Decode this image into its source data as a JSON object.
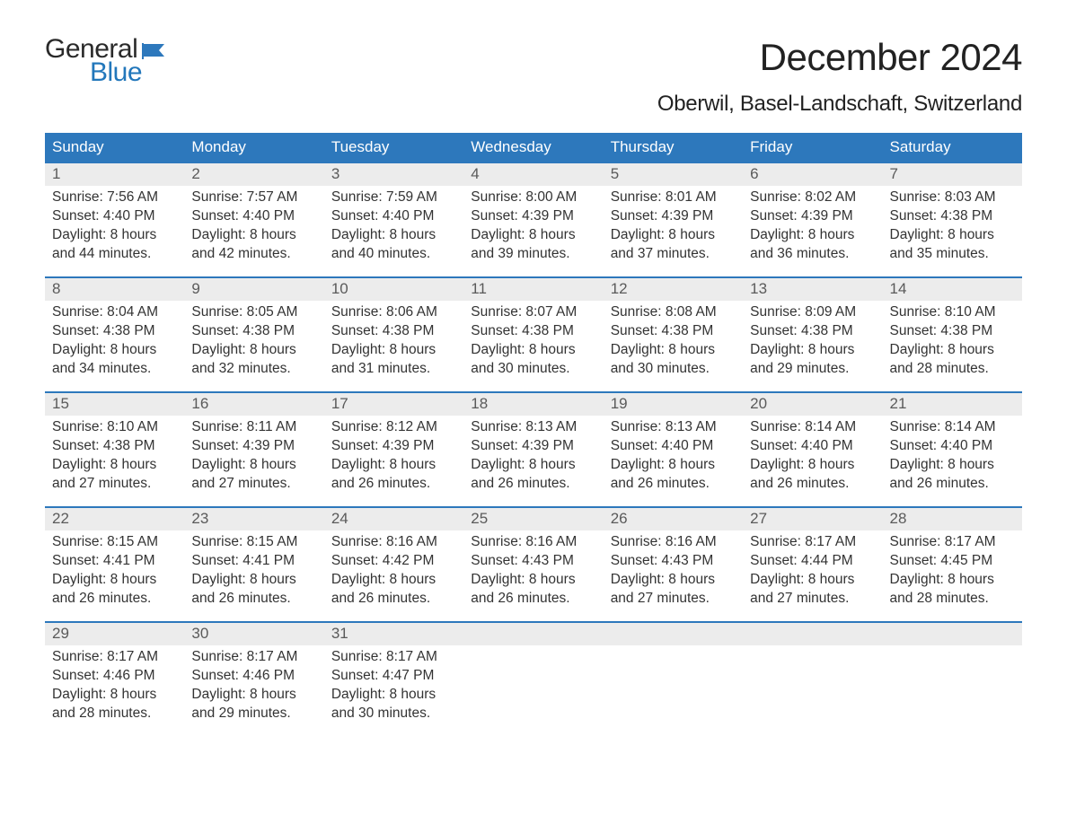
{
  "logo": {
    "text1": "General",
    "text2": "Blue",
    "color_general": "#2a2a2a",
    "color_blue": "#2277bb",
    "flag_color": "#2d78bc"
  },
  "title": "December 2024",
  "location": "Oberwil, Basel-Landschaft, Switzerland",
  "colors": {
    "header_bg": "#2d78bc",
    "header_text": "#ffffff",
    "daynum_bg": "#ececec",
    "daynum_text": "#5a5a5a",
    "body_text": "#333333",
    "week_border": "#2d78bc",
    "page_bg": "#ffffff"
  },
  "fonts": {
    "title_size_pt": 32,
    "location_size_pt": 18,
    "header_size_pt": 13,
    "daynum_size_pt": 13,
    "body_size_pt": 12
  },
  "day_headers": [
    "Sunday",
    "Monday",
    "Tuesday",
    "Wednesday",
    "Thursday",
    "Friday",
    "Saturday"
  ],
  "weeks": [
    [
      {
        "num": "1",
        "sunrise": "Sunrise: 7:56 AM",
        "sunset": "Sunset: 4:40 PM",
        "daylight": "Daylight: 8 hours and 44 minutes."
      },
      {
        "num": "2",
        "sunrise": "Sunrise: 7:57 AM",
        "sunset": "Sunset: 4:40 PM",
        "daylight": "Daylight: 8 hours and 42 minutes."
      },
      {
        "num": "3",
        "sunrise": "Sunrise: 7:59 AM",
        "sunset": "Sunset: 4:40 PM",
        "daylight": "Daylight: 8 hours and 40 minutes."
      },
      {
        "num": "4",
        "sunrise": "Sunrise: 8:00 AM",
        "sunset": "Sunset: 4:39 PM",
        "daylight": "Daylight: 8 hours and 39 minutes."
      },
      {
        "num": "5",
        "sunrise": "Sunrise: 8:01 AM",
        "sunset": "Sunset: 4:39 PM",
        "daylight": "Daylight: 8 hours and 37 minutes."
      },
      {
        "num": "6",
        "sunrise": "Sunrise: 8:02 AM",
        "sunset": "Sunset: 4:39 PM",
        "daylight": "Daylight: 8 hours and 36 minutes."
      },
      {
        "num": "7",
        "sunrise": "Sunrise: 8:03 AM",
        "sunset": "Sunset: 4:38 PM",
        "daylight": "Daylight: 8 hours and 35 minutes."
      }
    ],
    [
      {
        "num": "8",
        "sunrise": "Sunrise: 8:04 AM",
        "sunset": "Sunset: 4:38 PM",
        "daylight": "Daylight: 8 hours and 34 minutes."
      },
      {
        "num": "9",
        "sunrise": "Sunrise: 8:05 AM",
        "sunset": "Sunset: 4:38 PM",
        "daylight": "Daylight: 8 hours and 32 minutes."
      },
      {
        "num": "10",
        "sunrise": "Sunrise: 8:06 AM",
        "sunset": "Sunset: 4:38 PM",
        "daylight": "Daylight: 8 hours and 31 minutes."
      },
      {
        "num": "11",
        "sunrise": "Sunrise: 8:07 AM",
        "sunset": "Sunset: 4:38 PM",
        "daylight": "Daylight: 8 hours and 30 minutes."
      },
      {
        "num": "12",
        "sunrise": "Sunrise: 8:08 AM",
        "sunset": "Sunset: 4:38 PM",
        "daylight": "Daylight: 8 hours and 30 minutes."
      },
      {
        "num": "13",
        "sunrise": "Sunrise: 8:09 AM",
        "sunset": "Sunset: 4:38 PM",
        "daylight": "Daylight: 8 hours and 29 minutes."
      },
      {
        "num": "14",
        "sunrise": "Sunrise: 8:10 AM",
        "sunset": "Sunset: 4:38 PM",
        "daylight": "Daylight: 8 hours and 28 minutes."
      }
    ],
    [
      {
        "num": "15",
        "sunrise": "Sunrise: 8:10 AM",
        "sunset": "Sunset: 4:38 PM",
        "daylight": "Daylight: 8 hours and 27 minutes."
      },
      {
        "num": "16",
        "sunrise": "Sunrise: 8:11 AM",
        "sunset": "Sunset: 4:39 PM",
        "daylight": "Daylight: 8 hours and 27 minutes."
      },
      {
        "num": "17",
        "sunrise": "Sunrise: 8:12 AM",
        "sunset": "Sunset: 4:39 PM",
        "daylight": "Daylight: 8 hours and 26 minutes."
      },
      {
        "num": "18",
        "sunrise": "Sunrise: 8:13 AM",
        "sunset": "Sunset: 4:39 PM",
        "daylight": "Daylight: 8 hours and 26 minutes."
      },
      {
        "num": "19",
        "sunrise": "Sunrise: 8:13 AM",
        "sunset": "Sunset: 4:40 PM",
        "daylight": "Daylight: 8 hours and 26 minutes."
      },
      {
        "num": "20",
        "sunrise": "Sunrise: 8:14 AM",
        "sunset": "Sunset: 4:40 PM",
        "daylight": "Daylight: 8 hours and 26 minutes."
      },
      {
        "num": "21",
        "sunrise": "Sunrise: 8:14 AM",
        "sunset": "Sunset: 4:40 PM",
        "daylight": "Daylight: 8 hours and 26 minutes."
      }
    ],
    [
      {
        "num": "22",
        "sunrise": "Sunrise: 8:15 AM",
        "sunset": "Sunset: 4:41 PM",
        "daylight": "Daylight: 8 hours and 26 minutes."
      },
      {
        "num": "23",
        "sunrise": "Sunrise: 8:15 AM",
        "sunset": "Sunset: 4:41 PM",
        "daylight": "Daylight: 8 hours and 26 minutes."
      },
      {
        "num": "24",
        "sunrise": "Sunrise: 8:16 AM",
        "sunset": "Sunset: 4:42 PM",
        "daylight": "Daylight: 8 hours and 26 minutes."
      },
      {
        "num": "25",
        "sunrise": "Sunrise: 8:16 AM",
        "sunset": "Sunset: 4:43 PM",
        "daylight": "Daylight: 8 hours and 26 minutes."
      },
      {
        "num": "26",
        "sunrise": "Sunrise: 8:16 AM",
        "sunset": "Sunset: 4:43 PM",
        "daylight": "Daylight: 8 hours and 27 minutes."
      },
      {
        "num": "27",
        "sunrise": "Sunrise: 8:17 AM",
        "sunset": "Sunset: 4:44 PM",
        "daylight": "Daylight: 8 hours and 27 minutes."
      },
      {
        "num": "28",
        "sunrise": "Sunrise: 8:17 AM",
        "sunset": "Sunset: 4:45 PM",
        "daylight": "Daylight: 8 hours and 28 minutes."
      }
    ],
    [
      {
        "num": "29",
        "sunrise": "Sunrise: 8:17 AM",
        "sunset": "Sunset: 4:46 PM",
        "daylight": "Daylight: 8 hours and 28 minutes."
      },
      {
        "num": "30",
        "sunrise": "Sunrise: 8:17 AM",
        "sunset": "Sunset: 4:46 PM",
        "daylight": "Daylight: 8 hours and 29 minutes."
      },
      {
        "num": "31",
        "sunrise": "Sunrise: 8:17 AM",
        "sunset": "Sunset: 4:47 PM",
        "daylight": "Daylight: 8 hours and 30 minutes."
      },
      {
        "num": "",
        "sunrise": "",
        "sunset": "",
        "daylight": ""
      },
      {
        "num": "",
        "sunrise": "",
        "sunset": "",
        "daylight": ""
      },
      {
        "num": "",
        "sunrise": "",
        "sunset": "",
        "daylight": ""
      },
      {
        "num": "",
        "sunrise": "",
        "sunset": "",
        "daylight": ""
      }
    ]
  ]
}
